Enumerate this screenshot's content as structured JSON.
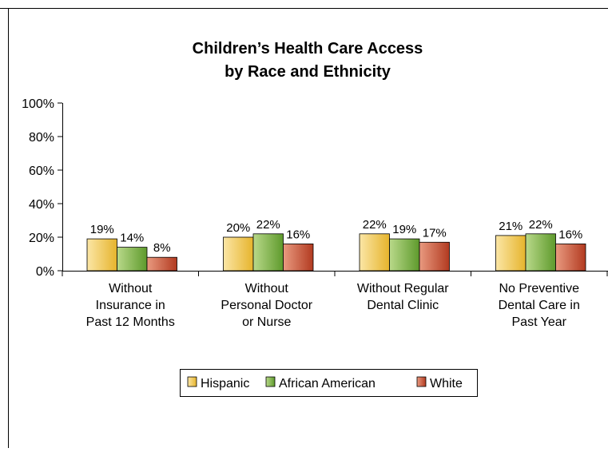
{
  "chart_data": {
    "type": "bar",
    "title": "Children’s Health Care Access by Race and Ethnicity",
    "title_lines": [
      "Children’s Health Care Access",
      "by Race and Ethnicity"
    ],
    "categories": [
      "Without Insurance in Past 12 Months",
      "Without Personal Doctor or Nurse",
      "Without Regular Dental Clinic",
      "No Preventive Dental Care in Past Year"
    ],
    "category_lines": [
      [
        "Without",
        "Insurance in",
        "Past 12 Months"
      ],
      [
        "Without",
        "Personal Doctor",
        "or Nurse"
      ],
      [
        "Without Regular",
        "Dental Clinic"
      ],
      [
        "No Preventive",
        "Dental Care in",
        "Past Year"
      ]
    ],
    "series": [
      {
        "name": "Hispanic",
        "values": [
          19,
          20,
          22,
          21
        ],
        "labels": [
          "19%",
          "20%",
          "22%",
          "21%"
        ],
        "color": "#E6B935"
      },
      {
        "name": "African American",
        "values": [
          14,
          22,
          19,
          22
        ],
        "labels": [
          "14%",
          "22%",
          "19%",
          "22%"
        ],
        "color": "#6FA83A"
      },
      {
        "name": "White",
        "values": [
          8,
          16,
          17,
          16
        ],
        "labels": [
          "8%",
          "16%",
          "17%",
          "16%"
        ],
        "color": "#C0482C"
      }
    ],
    "yticks": [
      "0%",
      "20%",
      "40%",
      "60%",
      "80%",
      "100%"
    ],
    "ylim": [
      0,
      100
    ],
    "grid": false,
    "legend_position": "bottom"
  }
}
